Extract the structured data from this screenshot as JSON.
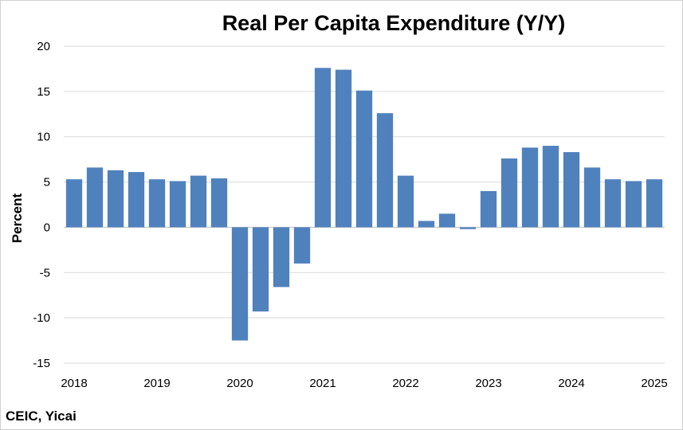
{
  "chart_data": {
    "type": "bar",
    "title": "Real Per Capita Expenditure (Y/Y)",
    "ylabel": "Percent",
    "xlabel": "",
    "source": "CEIC, Yicai",
    "ylim": [
      -15,
      20
    ],
    "yticks": [
      20,
      15,
      10,
      5,
      0,
      -5,
      -10,
      -15
    ],
    "ytick_labels": [
      "20",
      "15",
      "10",
      "5",
      "0",
      "-5",
      "-10",
      "-15"
    ],
    "xticks": [
      {
        "label": "2018",
        "index": 0
      },
      {
        "label": "2019",
        "index": 4
      },
      {
        "label": "2020",
        "index": 8
      },
      {
        "label": "2021",
        "index": 12
      },
      {
        "label": "2022",
        "index": 16
      },
      {
        "label": "2023",
        "index": 20
      },
      {
        "label": "2024",
        "index": 24
      },
      {
        "label": "2025",
        "index": 28
      }
    ],
    "grid": true,
    "bar_color": "#4f81bd",
    "series": [
      {
        "values": [
          5.3,
          6.6,
          6.3,
          6.1,
          5.3,
          5.1,
          5.7,
          5.4,
          -12.5,
          -9.3,
          -6.6,
          -4.0,
          17.6,
          17.4,
          15.1,
          12.6,
          5.7,
          0.7,
          1.5,
          -0.2,
          4.0,
          7.6,
          8.8,
          9.0,
          8.3,
          6.6,
          5.3,
          5.1,
          5.3
        ]
      }
    ]
  }
}
